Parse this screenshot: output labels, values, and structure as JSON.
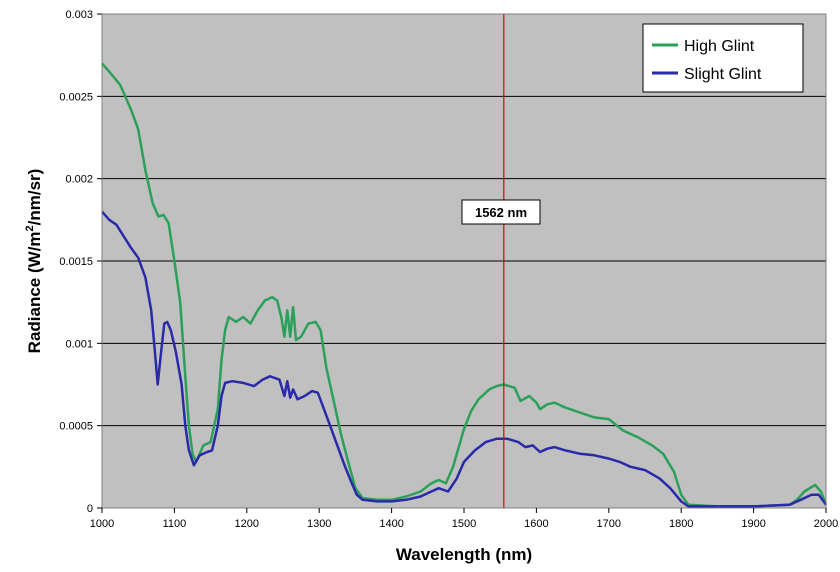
{
  "chart_data": {
    "type": "line",
    "xlabel": "Wavelength (nm)",
    "ylabel_parts": [
      "Radiance (W/m",
      "2",
      "/nm/sr)"
    ],
    "xlim": [
      1000,
      2000
    ],
    "ylim": [
      0,
      0.003
    ],
    "x_ticks": [
      1000,
      1100,
      1200,
      1300,
      1400,
      1500,
      1600,
      1700,
      1800,
      1900,
      2000
    ],
    "x_tick_labels": [
      "1000",
      "1100",
      "1200",
      "1300",
      "1400",
      "1500",
      "1600",
      "1700",
      "1800",
      "1900",
      "2000"
    ],
    "y_ticks": [
      0,
      0.0005,
      0.001,
      0.0015,
      0.002,
      0.0025,
      0.003
    ],
    "y_tick_labels": [
      "0",
      "0.0005",
      "0.001",
      "0.0015",
      "0.002",
      "0.0025",
      "0.003"
    ],
    "grid": "horizontal",
    "plot_background": "#c0c0c0",
    "legend_position": "top-right",
    "annotation": {
      "x": 1555,
      "label": "1562 nm",
      "color": "#e00000"
    },
    "series": [
      {
        "name": "High Glint",
        "color": "#2aa05a",
        "points": [
          [
            1000,
            0.0027
          ],
          [
            1010,
            0.00265
          ],
          [
            1025,
            0.00257
          ],
          [
            1040,
            0.00242
          ],
          [
            1050,
            0.0023
          ],
          [
            1060,
            0.00205
          ],
          [
            1070,
            0.00185
          ],
          [
            1078,
            0.00177
          ],
          [
            1085,
            0.00178
          ],
          [
            1092,
            0.00173
          ],
          [
            1100,
            0.0015
          ],
          [
            1108,
            0.00125
          ],
          [
            1115,
            0.0008
          ],
          [
            1120,
            0.0005
          ],
          [
            1125,
            0.00033
          ],
          [
            1130,
            0.00028
          ],
          [
            1140,
            0.00038
          ],
          [
            1150,
            0.0004
          ],
          [
            1160,
            0.0006
          ],
          [
            1165,
            0.0009
          ],
          [
            1170,
            0.00108
          ],
          [
            1175,
            0.00116
          ],
          [
            1185,
            0.00113
          ],
          [
            1195,
            0.00116
          ],
          [
            1205,
            0.00112
          ],
          [
            1215,
            0.0012
          ],
          [
            1225,
            0.00126
          ],
          [
            1235,
            0.00128
          ],
          [
            1242,
            0.00126
          ],
          [
            1248,
            0.00115
          ],
          [
            1252,
            0.00104
          ],
          [
            1256,
            0.0012
          ],
          [
            1260,
            0.00104
          ],
          [
            1264,
            0.00122
          ],
          [
            1268,
            0.00102
          ],
          [
            1275,
            0.00104
          ],
          [
            1285,
            0.00112
          ],
          [
            1295,
            0.00113
          ],
          [
            1302,
            0.00108
          ],
          [
            1310,
            0.00085
          ],
          [
            1320,
            0.00065
          ],
          [
            1330,
            0.00045
          ],
          [
            1340,
            0.00028
          ],
          [
            1350,
            0.00012
          ],
          [
            1360,
            6e-05
          ],
          [
            1380,
            5e-05
          ],
          [
            1400,
            5e-05
          ],
          [
            1420,
            7e-05
          ],
          [
            1440,
            0.0001
          ],
          [
            1455,
            0.00015
          ],
          [
            1465,
            0.00017
          ],
          [
            1475,
            0.00015
          ],
          [
            1485,
            0.00025
          ],
          [
            1500,
            0.00048
          ],
          [
            1510,
            0.00059
          ],
          [
            1520,
            0.00066
          ],
          [
            1535,
            0.00072
          ],
          [
            1545,
            0.00074
          ],
          [
            1555,
            0.00075
          ],
          [
            1570,
            0.00073
          ],
          [
            1578,
            0.00065
          ],
          [
            1590,
            0.00068
          ],
          [
            1600,
            0.00064
          ],
          [
            1605,
            0.0006
          ],
          [
            1615,
            0.00063
          ],
          [
            1625,
            0.00064
          ],
          [
            1640,
            0.00061
          ],
          [
            1660,
            0.00058
          ],
          [
            1680,
            0.00055
          ],
          [
            1700,
            0.00054
          ],
          [
            1720,
            0.00047
          ],
          [
            1740,
            0.00043
          ],
          [
            1760,
            0.00038
          ],
          [
            1775,
            0.00033
          ],
          [
            1790,
            0.00022
          ],
          [
            1800,
            8e-05
          ],
          [
            1810,
            2e-05
          ],
          [
            1850,
            1e-05
          ],
          [
            1900,
            1e-05
          ],
          [
            1950,
            2e-05
          ],
          [
            1960,
            5e-05
          ],
          [
            1970,
            0.0001
          ],
          [
            1985,
            0.00014
          ],
          [
            1993,
            0.0001
          ],
          [
            2000,
            2e-05
          ]
        ]
      },
      {
        "name": "Slight Glint",
        "color": "#2a2aa8",
        "points": [
          [
            1000,
            0.0018
          ],
          [
            1010,
            0.00175
          ],
          [
            1020,
            0.00172
          ],
          [
            1030,
            0.00165
          ],
          [
            1040,
            0.00158
          ],
          [
            1050,
            0.00152
          ],
          [
            1060,
            0.0014
          ],
          [
            1068,
            0.0012
          ],
          [
            1073,
            0.00095
          ],
          [
            1077,
            0.00075
          ],
          [
            1081,
            0.00092
          ],
          [
            1086,
            0.00112
          ],
          [
            1090,
            0.00113
          ],
          [
            1095,
            0.00108
          ],
          [
            1102,
            0.00095
          ],
          [
            1110,
            0.00075
          ],
          [
            1115,
            0.0005
          ],
          [
            1120,
            0.00035
          ],
          [
            1127,
            0.00026
          ],
          [
            1135,
            0.00032
          ],
          [
            1145,
            0.00034
          ],
          [
            1152,
            0.00035
          ],
          [
            1160,
            0.0005
          ],
          [
            1165,
            0.00068
          ],
          [
            1170,
            0.00076
          ],
          [
            1180,
            0.00077
          ],
          [
            1195,
            0.00076
          ],
          [
            1210,
            0.00074
          ],
          [
            1222,
            0.00078
          ],
          [
            1232,
            0.0008
          ],
          [
            1245,
            0.00078
          ],
          [
            1252,
            0.00068
          ],
          [
            1256,
            0.00077
          ],
          [
            1260,
            0.00067
          ],
          [
            1264,
            0.00072
          ],
          [
            1270,
            0.00066
          ],
          [
            1280,
            0.00068
          ],
          [
            1290,
            0.00071
          ],
          [
            1298,
            0.0007
          ],
          [
            1305,
            0.00062
          ],
          [
            1315,
            0.0005
          ],
          [
            1325,
            0.00038
          ],
          [
            1335,
            0.00026
          ],
          [
            1345,
            0.00015
          ],
          [
            1352,
            8e-05
          ],
          [
            1360,
            5e-05
          ],
          [
            1380,
            4e-05
          ],
          [
            1400,
            4e-05
          ],
          [
            1420,
            5e-05
          ],
          [
            1440,
            7e-05
          ],
          [
            1455,
            0.0001
          ],
          [
            1465,
            0.00012
          ],
          [
            1478,
            0.0001
          ],
          [
            1490,
            0.00018
          ],
          [
            1500,
            0.00028
          ],
          [
            1515,
            0.00035
          ],
          [
            1530,
            0.0004
          ],
          [
            1545,
            0.00042
          ],
          [
            1560,
            0.00042
          ],
          [
            1575,
            0.0004
          ],
          [
            1585,
            0.00037
          ],
          [
            1595,
            0.00038
          ],
          [
            1605,
            0.00034
          ],
          [
            1615,
            0.00036
          ],
          [
            1625,
            0.00037
          ],
          [
            1640,
            0.00035
          ],
          [
            1660,
            0.00033
          ],
          [
            1680,
            0.00032
          ],
          [
            1700,
            0.0003
          ],
          [
            1715,
            0.00028
          ],
          [
            1730,
            0.00025
          ],
          [
            1750,
            0.00023
          ],
          [
            1770,
            0.00018
          ],
          [
            1785,
            0.00012
          ],
          [
            1800,
            4e-05
          ],
          [
            1810,
            1e-05
          ],
          [
            1850,
            1e-05
          ],
          [
            1900,
            1e-05
          ],
          [
            1950,
            2e-05
          ],
          [
            1965,
            5e-05
          ],
          [
            1980,
            8e-05
          ],
          [
            1990,
            8e-05
          ],
          [
            2000,
            2e-05
          ]
        ]
      }
    ]
  }
}
